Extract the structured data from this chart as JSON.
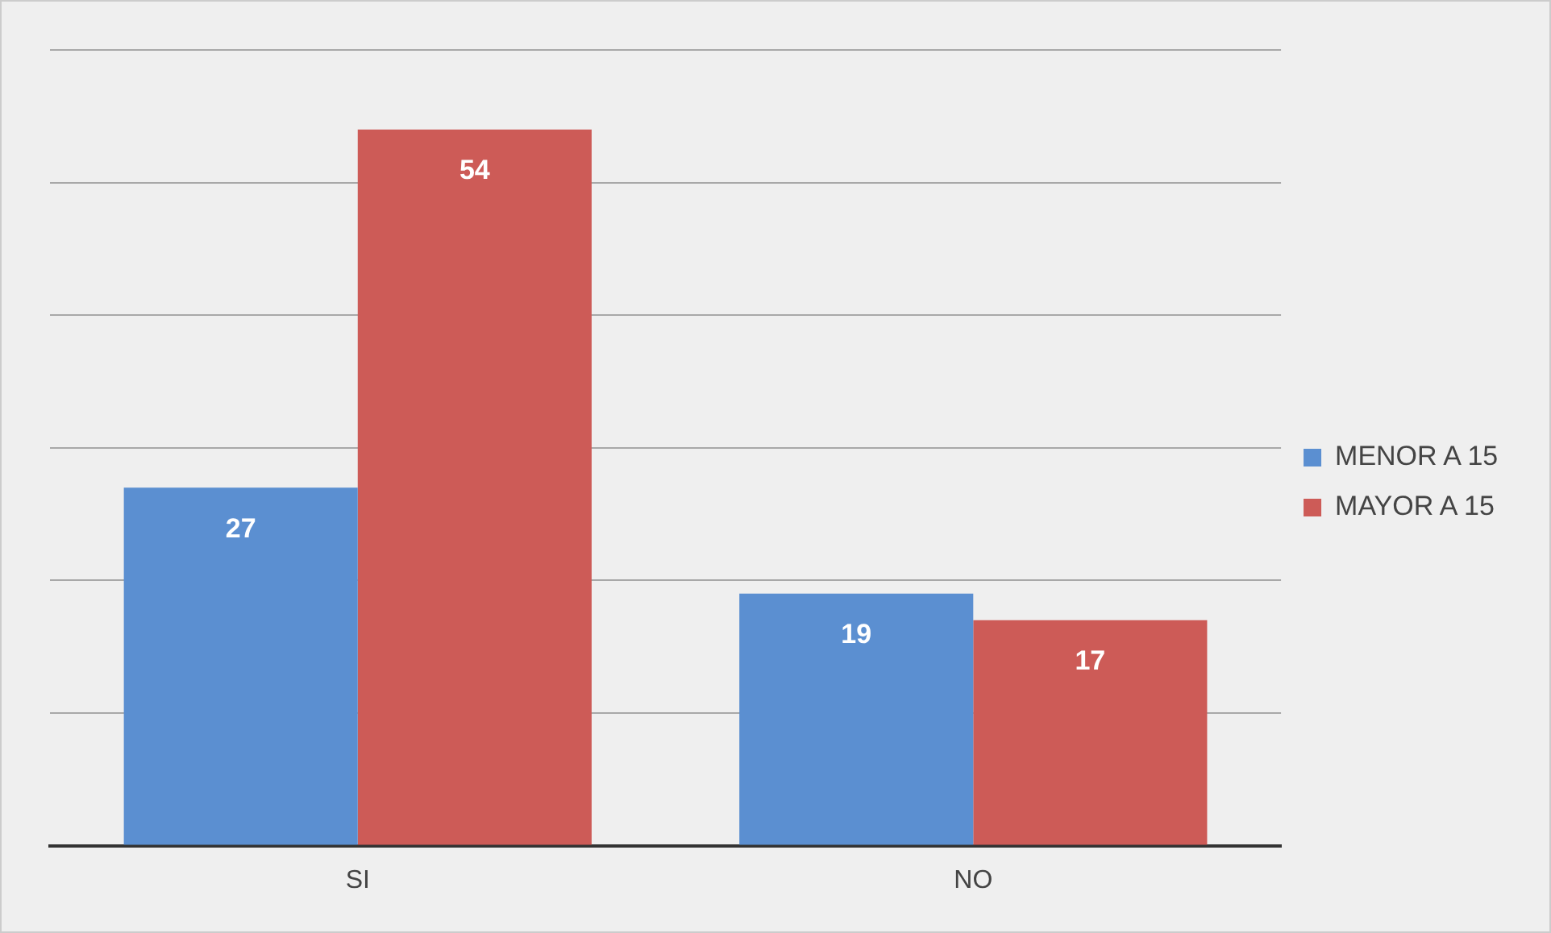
{
  "chart_data": {
    "type": "bar",
    "categories": [
      "SI",
      "NO"
    ],
    "series": [
      {
        "name": "MENOR A 15",
        "color": "#5b8fd1",
        "values": [
          27,
          19
        ]
      },
      {
        "name": "MAYOR A 15",
        "color": "#cd5b57",
        "values": [
          54,
          17
        ]
      }
    ],
    "ylim": [
      0,
      60
    ],
    "yticks": [
      {
        "value": 0,
        "label": null
      },
      {
        "value": 10,
        "label": null
      },
      {
        "value": 20,
        "label": null
      },
      {
        "value": 30,
        "label": null
      },
      {
        "value": 40,
        "label": null
      },
      {
        "value": 50,
        "label": null
      },
      {
        "value": 60,
        "label": null
      }
    ],
    "tick_labels": "x",
    "grid": "y",
    "legend": "right",
    "data_labels": true
  }
}
